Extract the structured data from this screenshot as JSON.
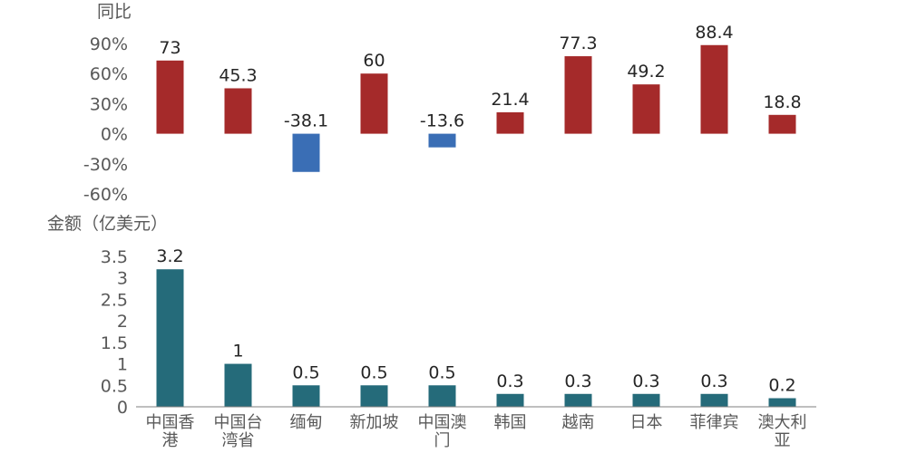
{
  "chart_data": [
    {
      "type": "bar",
      "ylabel": "同比",
      "yticks": [
        "90%",
        "60%",
        "30%",
        "0%",
        "-30%",
        "-60%"
      ],
      "ylim": [
        -60,
        90
      ],
      "categories": [
        "中国香港",
        "中国台湾省",
        "缅甸",
        "新加坡",
        "中国澳门",
        "韩国",
        "越南",
        "日本",
        "菲律宾",
        "澳大利亚"
      ],
      "values": [
        73,
        45.3,
        -38.1,
        60,
        -13.6,
        21.4,
        77.3,
        49.2,
        88.4,
        18.8
      ],
      "colors": {
        "positive": "#A52A2A",
        "negative": "#3A6EB5"
      }
    },
    {
      "type": "bar",
      "ylabel": "金额（亿美元）",
      "yticks": [
        "3.5",
        "3",
        "2.5",
        "2",
        "1.5",
        "1",
        "0.5",
        "0"
      ],
      "ylim": [
        0,
        3.5
      ],
      "categories": [
        "中国香港",
        "中国台湾省",
        "缅甸",
        "新加坡",
        "中国澳门",
        "韩国",
        "越南",
        "日本",
        "菲律宾",
        "澳大利亚"
      ],
      "values": [
        3.2,
        1,
        0.5,
        0.5,
        0.5,
        0.3,
        0.3,
        0.3,
        0.3,
        0.2
      ],
      "colors": {
        "bar": "#256B7A"
      }
    }
  ]
}
